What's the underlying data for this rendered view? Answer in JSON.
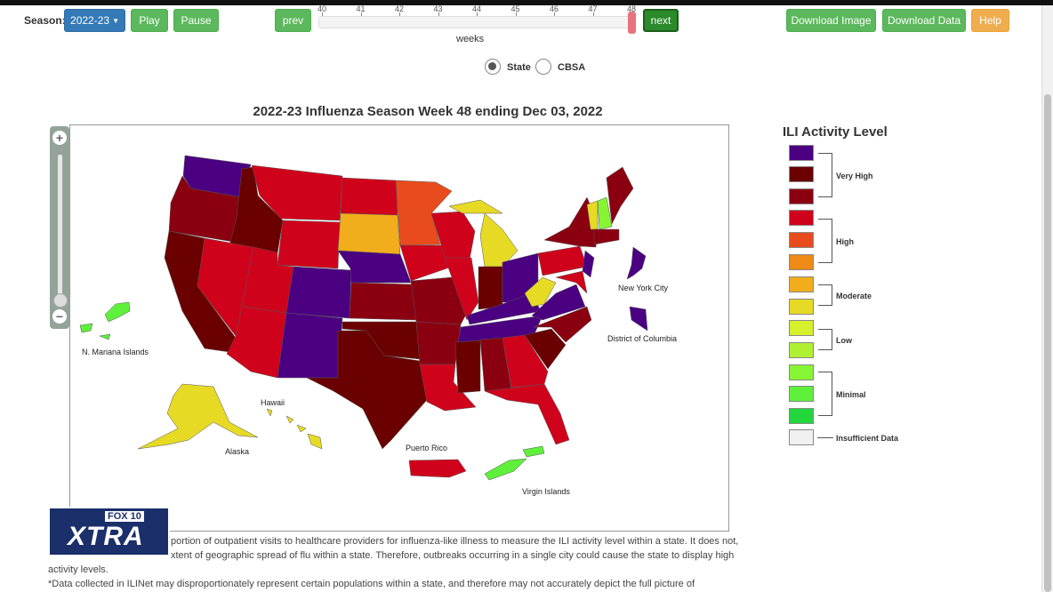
{
  "controls": {
    "season_label": "Season:",
    "season_value": "2022-23",
    "play": "Play",
    "pause": "Pause",
    "prev": "prev",
    "next": "next",
    "weeks_label": "weeks",
    "week_ticks": [
      "40",
      "41",
      "42",
      "43",
      "44",
      "45",
      "46",
      "47",
      "48"
    ],
    "selected_week": 48,
    "download_image": "Download Image",
    "download_data": "Download Data",
    "help": "Help",
    "radio_state": "State",
    "radio_cbsa": "CBSA",
    "selected_view": "State"
  },
  "map": {
    "title": "2022-23 Influenza Season Week 48 ending Dec 03, 2022",
    "labels": {
      "mariana": "N. Mariana Islands",
      "alaska": "Alaska",
      "hawaii": "Hawaii",
      "puerto_rico": "Puerto Rico",
      "virgin": "Virgin Islands",
      "nyc": "New York City",
      "dc": "District of Columbia"
    },
    "zoom_in": "+",
    "zoom_out": "−"
  },
  "legend": {
    "title": "ILI Activity Level",
    "swatches": [
      "#4b0082",
      "#6b0000",
      "#8b0011",
      "#d0021b",
      "#e84c1c",
      "#ef8a17",
      "#f2ad1c",
      "#e6da25",
      "#d7f02c",
      "#b0f032",
      "#86f534",
      "#5ef03a",
      "#22d63c",
      "#f0f0f0"
    ],
    "levels": {
      "very_high": "Very High",
      "high": "High",
      "moderate": "Moderate",
      "low": "Low",
      "minimal": "Minimal",
      "insufficient": "Insufficient Data"
    }
  },
  "notes": {
    "line1": "portion of outpatient visits to healthcare providers for influenza-like illness to measure the ILI activity level within a state. It does not,",
    "line2": "xtent of geographic spread of flu within a state. Therefore, outbreaks occurring in a single city could cause the state to display high",
    "line3": "activity levels.",
    "line4": "*Data collected in ILINet may disproportionately represent certain populations within a state, and therefore may not accurately depict the full picture of"
  },
  "logo": {
    "fox": "FOX 10",
    "xtra": "XTRA"
  }
}
